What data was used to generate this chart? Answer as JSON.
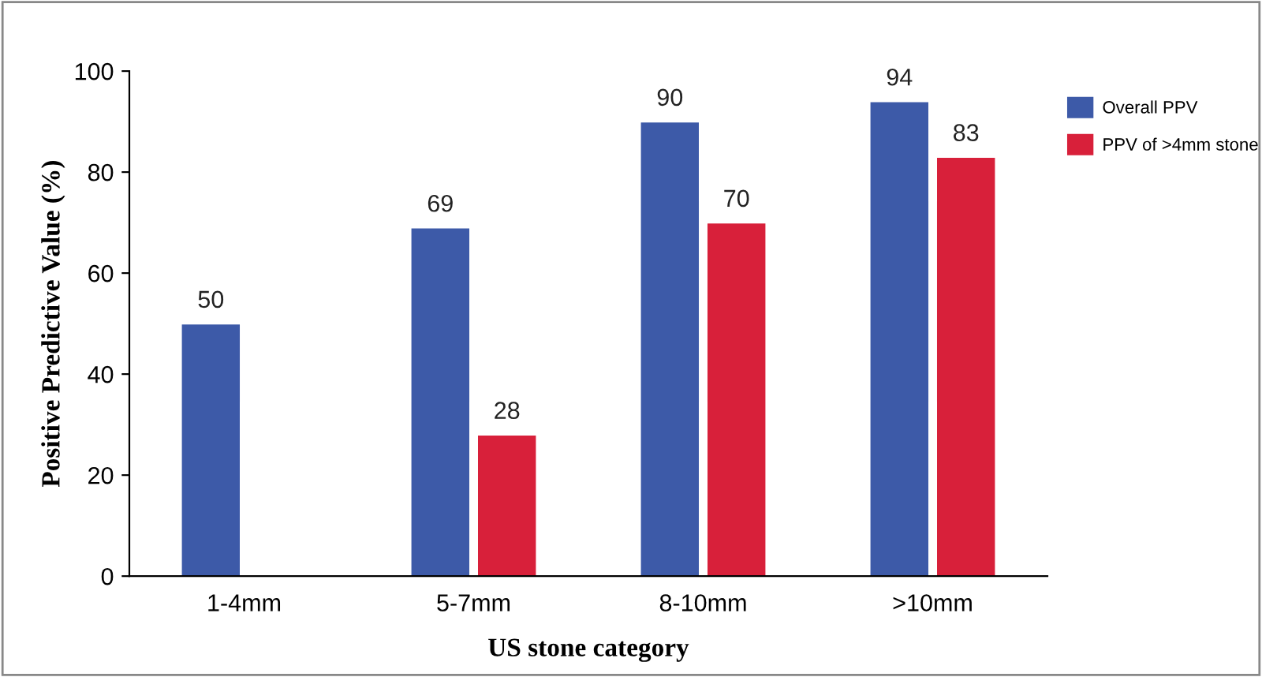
{
  "chart_data": {
    "type": "bar",
    "xlabel": "US stone category",
    "ylabel": "Positive Predictive Value (%)",
    "categories": [
      "1-4mm",
      "5-7mm",
      "8-10mm",
      ">10mm"
    ],
    "series": [
      {
        "name": "Overall PPV",
        "color": "#3d5aa8",
        "values": [
          50,
          69,
          90,
          94
        ]
      },
      {
        "name": "PPV of >4mm stone",
        "color": "#d8203a",
        "values": [
          null,
          28,
          70,
          83
        ]
      }
    ],
    "ylim": [
      0,
      100
    ],
    "yticks": [
      0,
      20,
      40,
      60,
      80,
      100
    ],
    "data_labels": true,
    "legend": "top right"
  }
}
